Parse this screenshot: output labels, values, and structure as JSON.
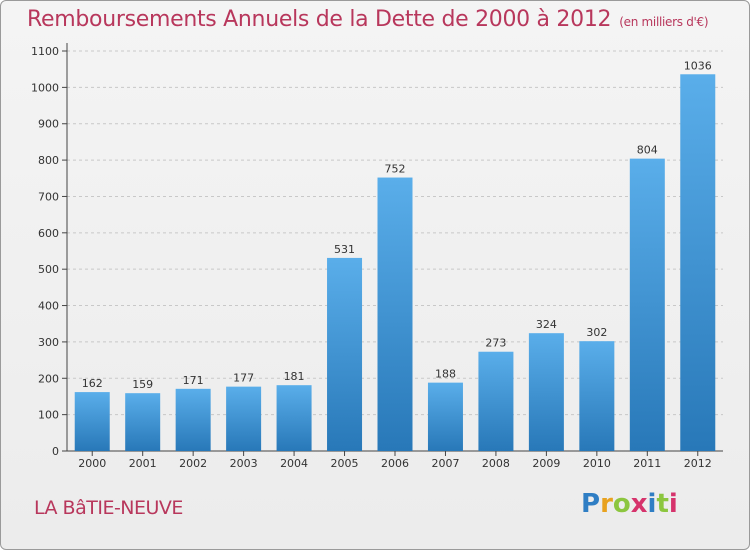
{
  "title": "Remboursements Annuels de la Dette de 2000 à 2012",
  "subtitle": "(en milliers d'€)",
  "commune": "LA BâTIE-NEUVE",
  "logo": {
    "text": "Proxiti",
    "letters": [
      "P",
      "r",
      "o",
      "x",
      "i",
      "t",
      "i"
    ],
    "colors": [
      "#2f7ec4",
      "#e8a21f",
      "#8cc63f",
      "#d6336c",
      "#2f7ec4",
      "#8cc63f",
      "#d6336c"
    ]
  },
  "colors": {
    "title": "#b8375c",
    "bar_top": "#5aaeea",
    "bar_bottom": "#2878b8",
    "grid": "#c8c8c8"
  },
  "chart_data": {
    "type": "bar",
    "title": "Remboursements Annuels de la Dette de 2000 à 2012",
    "subtitle": "(en milliers d'€)",
    "categories": [
      "2000",
      "2001",
      "2002",
      "2003",
      "2004",
      "2005",
      "2006",
      "2007",
      "2008",
      "2009",
      "2010",
      "2011",
      "2012"
    ],
    "values": [
      162,
      159,
      171,
      177,
      181,
      531,
      752,
      188,
      273,
      324,
      302,
      804,
      1036
    ],
    "ylim": [
      0,
      1100
    ],
    "yticks": [
      0,
      100,
      200,
      300,
      400,
      500,
      600,
      700,
      800,
      900,
      1000,
      1100
    ],
    "grid": "horizontal-dashed",
    "data_labels": true
  }
}
